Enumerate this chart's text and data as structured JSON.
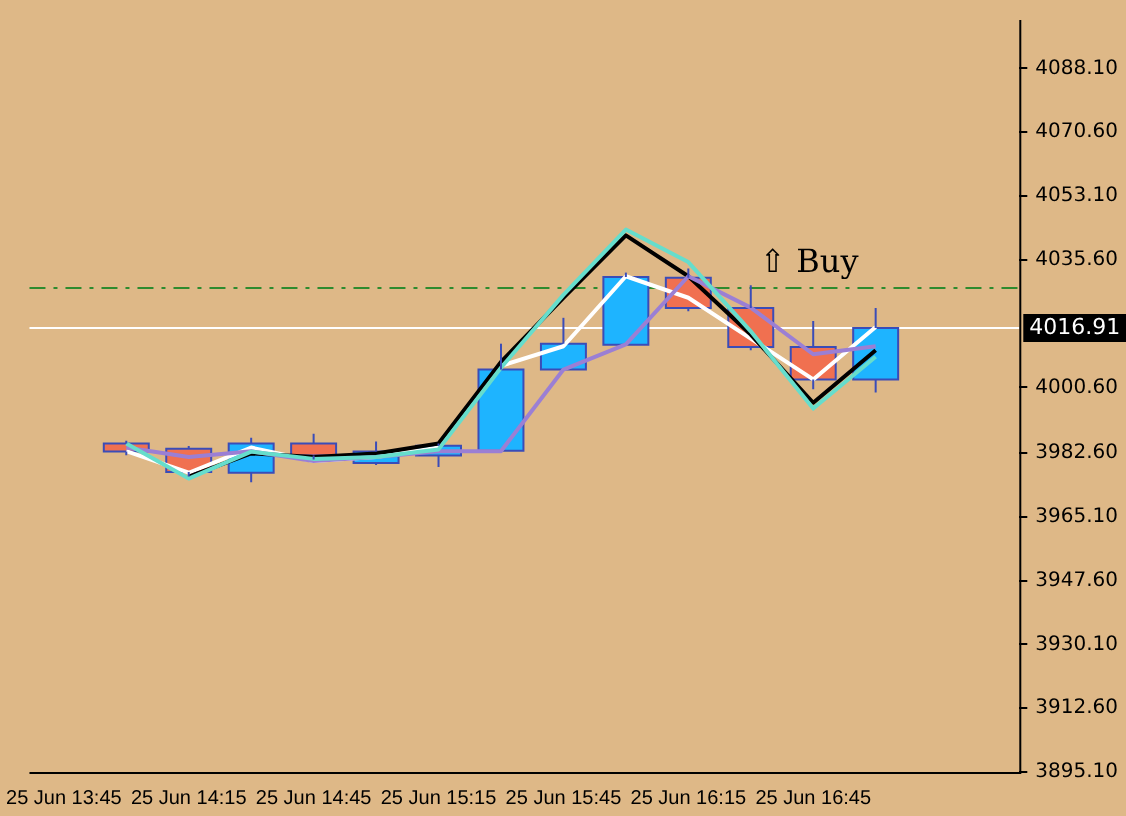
{
  "chart_data": {
    "type": "candlestick",
    "categories": [
      "25 Jun 13:45",
      null,
      "25 Jun 14:15",
      null,
      "25 Jun 14:45",
      null,
      "25 Jun 15:15",
      null,
      "25 Jun 15:45",
      null,
      "25 Jun 16:15",
      null,
      "25 Jun 16:45",
      null
    ],
    "ohlc": [
      null,
      [
        3985.2,
        3986,
        3982,
        3983
      ],
      [
        3983.8,
        3984.5,
        3976.2,
        3977.4
      ],
      [
        3977.2,
        3986.8,
        3974.6,
        3985.2
      ],
      [
        3985.2,
        3987.9,
        3980.8,
        3981.9
      ],
      [
        3979.9,
        3985.8,
        3979.3,
        3983
      ],
      [
        3981.9,
        3985.2,
        3978.8,
        3984.6
      ],
      [
        3983.2,
        4012.6,
        3983.2,
        4005.5
      ],
      [
        4005.5,
        4019.7,
        4005.5,
        4012.6
      ],
      [
        4012.3,
        4032.1,
        4012.3,
        4030.9
      ],
      [
        4030.7,
        4033.2,
        4021.5,
        4022.4
      ],
      [
        4022.4,
        4028.6,
        4010.8,
        4011.7
      ],
      [
        4011.7,
        4018.8,
        4000.1,
        4002.8
      ],
      [
        4002.8,
        4022.4,
        3999.2,
        4016.9
      ]
    ],
    "colors": [
      null,
      "#f07050",
      "#f07050",
      "#1eb4ff",
      "#f07050",
      "#1eb4ff",
      "#1eb4ff",
      "#1eb4ff",
      "#1eb4ff",
      "#1eb4ff",
      "#f07050",
      "#f07050",
      "#f07050",
      "#1eb4ff"
    ],
    "series": [
      {
        "type": "line",
        "color": "#66ddcc",
        "values": [
          null,
          3985.2,
          3975.6,
          3983,
          3981,
          3981.5,
          3983.6,
          4006,
          4026,
          4043.9,
          4035,
          4016,
          3994.8,
          4009
        ]
      },
      {
        "type": "line",
        "color": "#9b7fd4",
        "values": [
          null,
          3984.1,
          3981.5,
          3983.1,
          3980.4,
          3981.5,
          3983.1,
          3983.1,
          4005.5,
          4012.4,
          4031.1,
          4022.5,
          4009.7,
          4011.9
        ]
      },
      {
        "type": "line",
        "color": "#000000",
        "values": [
          null,
          null,
          3976.1,
          3982.5,
          3981.5,
          3982.5,
          3985.2,
          4007.6,
          4025.2,
          4042.3,
          4031.1,
          4015.1,
          3996.4,
          4010.8
        ]
      },
      {
        "type": "line",
        "color": "#ffffff",
        "values": [
          null,
          3983.1,
          3977.2,
          3984.1,
          3980.4,
          3981.5,
          3984.1,
          4006.5,
          4011.9,
          4031.1,
          4025.2,
          4014,
          4002.8,
          4017.2
        ]
      }
    ],
    "ylim": [
      3895.1,
      4101.4
    ],
    "yticks": [
      {
        "value": 3895.1,
        "label": "3895.10"
      },
      {
        "value": 3912.6,
        "label": "3912.60"
      },
      {
        "value": 3930.1,
        "label": "3930.10"
      },
      {
        "value": 3947.6,
        "label": "3947.60"
      },
      {
        "value": 3965.1,
        "label": "3965.10"
      },
      {
        "value": 3982.6,
        "label": "3982.60"
      },
      {
        "value": 4000.6,
        "label": "4000.60"
      },
      {
        "value": 4035.6,
        "label": "4035.60"
      },
      {
        "value": 4053.1,
        "label": "4053.10"
      },
      {
        "value": 4070.6,
        "label": "4070.60"
      },
      {
        "value": 4088.1,
        "label": "4088.10"
      }
    ],
    "ref_lines": [
      {
        "axis": "y",
        "value": 4027.9,
        "label": null,
        "color": "#2e8b2e",
        "line_style": "dashdot"
      },
      {
        "axis": "y",
        "value": 4016.91,
        "label": "4016.91",
        "color": "#ffffff",
        "line_style": "solid"
      }
    ],
    "annotations": [
      "⇧ Buy"
    ],
    "grid": false,
    "legend": false,
    "marker": "none"
  }
}
